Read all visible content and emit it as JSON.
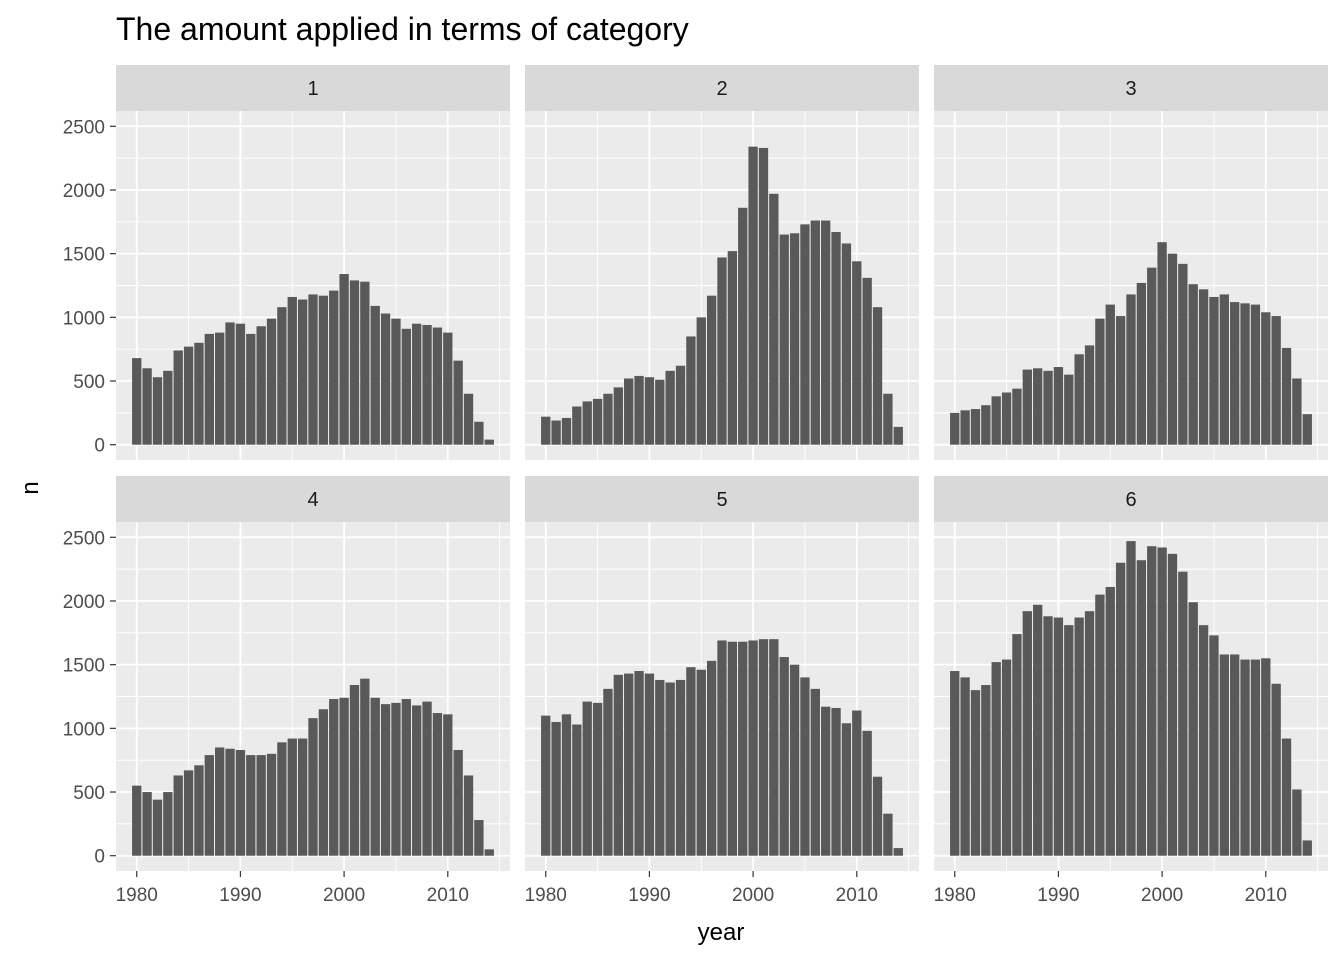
{
  "chart_data": {
    "type": "bar",
    "title": "The amount applied in terms of category",
    "xlabel": "year",
    "ylabel": "n",
    "xlim": [
      1978,
      2016
    ],
    "ylim": [
      -120,
      2620
    ],
    "x_ticks": [
      1980,
      1990,
      2000,
      2010
    ],
    "y_ticks": [
      0,
      500,
      1000,
      1500,
      2000,
      2500
    ],
    "grid": true,
    "legend": "none",
    "bar_color": "#595959",
    "panel_background": "#ebebeb",
    "strip_background": "#d9d9d9",
    "years": [
      1980,
      1981,
      1982,
      1983,
      1984,
      1985,
      1986,
      1987,
      1988,
      1989,
      1990,
      1991,
      1992,
      1993,
      1994,
      1995,
      1996,
      1997,
      1998,
      1999,
      2000,
      2001,
      2002,
      2003,
      2004,
      2005,
      2006,
      2007,
      2008,
      2009,
      2010,
      2011,
      2012,
      2013,
      2014
    ],
    "facets": [
      {
        "label": "1",
        "values": [
          680,
          600,
          530,
          580,
          740,
          770,
          800,
          870,
          880,
          960,
          950,
          870,
          930,
          990,
          1080,
          1160,
          1140,
          1180,
          1170,
          1210,
          1340,
          1290,
          1280,
          1090,
          1030,
          990,
          910,
          950,
          940,
          920,
          880,
          660,
          400,
          180,
          40
        ]
      },
      {
        "label": "2",
        "values": [
          220,
          190,
          210,
          300,
          340,
          360,
          400,
          450,
          520,
          540,
          530,
          510,
          580,
          620,
          850,
          1000,
          1170,
          1470,
          1520,
          1860,
          2340,
          2330,
          1970,
          1650,
          1660,
          1730,
          1760,
          1760,
          1670,
          1580,
          1440,
          1310,
          1080,
          400,
          140
        ]
      },
      {
        "label": "3",
        "values": [
          250,
          270,
          280,
          310,
          380,
          410,
          440,
          590,
          600,
          580,
          610,
          550,
          710,
          780,
          990,
          1100,
          1010,
          1180,
          1270,
          1390,
          1590,
          1500,
          1420,
          1260,
          1220,
          1160,
          1180,
          1120,
          1110,
          1100,
          1040,
          1010,
          760,
          520,
          240
        ]
      },
      {
        "label": "4",
        "values": [
          550,
          500,
          440,
          500,
          630,
          670,
          710,
          790,
          850,
          840,
          830,
          790,
          790,
          800,
          890,
          920,
          920,
          1080,
          1150,
          1230,
          1240,
          1340,
          1390,
          1240,
          1190,
          1200,
          1230,
          1180,
          1210,
          1120,
          1110,
          830,
          630,
          280,
          50
        ]
      },
      {
        "label": "5",
        "values": [
          1100,
          1050,
          1110,
          1030,
          1210,
          1200,
          1310,
          1420,
          1430,
          1450,
          1430,
          1380,
          1360,
          1380,
          1480,
          1460,
          1530,
          1690,
          1680,
          1680,
          1690,
          1700,
          1700,
          1560,
          1500,
          1400,
          1310,
          1170,
          1160,
          1040,
          1140,
          980,
          620,
          330,
          60
        ]
      },
      {
        "label": "6",
        "values": [
          1450,
          1400,
          1300,
          1340,
          1520,
          1540,
          1740,
          1920,
          1970,
          1880,
          1870,
          1810,
          1870,
          1920,
          2050,
          2110,
          2300,
          2470,
          2320,
          2430,
          2420,
          2370,
          2230,
          1990,
          1810,
          1730,
          1580,
          1580,
          1540,
          1540,
          1550,
          1350,
          920,
          520,
          120
        ]
      }
    ]
  }
}
